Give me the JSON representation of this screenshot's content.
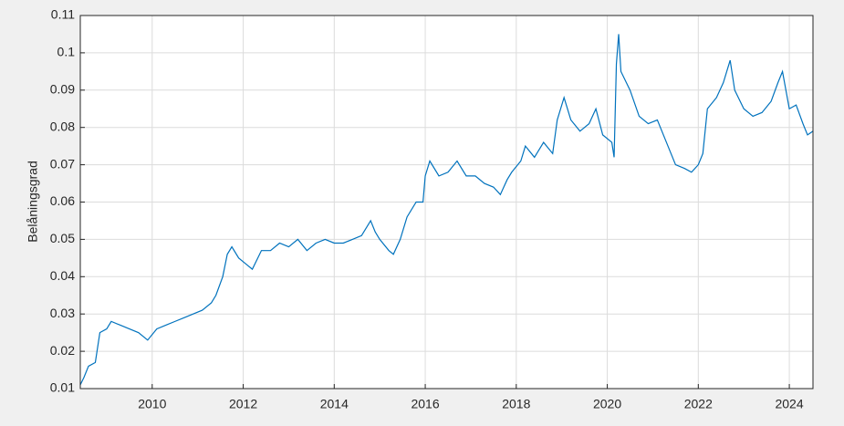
{
  "chart_data": {
    "type": "line",
    "y_label": "Belåningsgrad",
    "xlim": [
      2008.42,
      2024.52
    ],
    "xticks": [
      2010,
      2012,
      2014,
      2016,
      2018,
      2020,
      2022,
      2024
    ],
    "ylim": [
      0.01,
      0.11
    ],
    "yticks": [
      0.01,
      0.02,
      0.03,
      0.04,
      0.05,
      0.06,
      0.07,
      0.08,
      0.09,
      0.1,
      0.11
    ],
    "grid": true,
    "series": [
      {
        "color": "#0072bd",
        "x": [
          2008.42,
          2008.5,
          2008.6,
          2008.75,
          2008.85,
          2009.0,
          2009.1,
          2009.3,
          2009.5,
          2009.7,
          2009.9,
          2010.1,
          2010.3,
          2010.5,
          2010.7,
          2010.9,
          2011.1,
          2011.3,
          2011.4,
          2011.55,
          2011.65,
          2011.75,
          2011.9,
          2012.1,
          2012.2,
          2012.4,
          2012.6,
          2012.8,
          2013.0,
          2013.2,
          2013.4,
          2013.6,
          2013.8,
          2014.0,
          2014.2,
          2014.4,
          2014.6,
          2014.8,
          2014.9,
          2015.0,
          2015.2,
          2015.3,
          2015.45,
          2015.6,
          2015.8,
          2015.95,
          2016.0,
          2016.1,
          2016.3,
          2016.5,
          2016.7,
          2016.9,
          2017.1,
          2017.3,
          2017.5,
          2017.65,
          2017.8,
          2017.9,
          2018.1,
          2018.2,
          2018.4,
          2018.6,
          2018.8,
          2018.9,
          2019.05,
          2019.2,
          2019.4,
          2019.6,
          2019.75,
          2019.9,
          2020.1,
          2020.15,
          2020.2,
          2020.25,
          2020.3,
          2020.5,
          2020.7,
          2020.9,
          2021.1,
          2021.3,
          2021.5,
          2021.7,
          2021.85,
          2022.0,
          2022.1,
          2022.2,
          2022.4,
          2022.55,
          2022.7,
          2022.8,
          2023.0,
          2023.2,
          2023.4,
          2023.6,
          2023.75,
          2023.85,
          2024.0,
          2024.15,
          2024.3,
          2024.4,
          2024.52
        ],
        "values": [
          0.011,
          0.013,
          0.016,
          0.017,
          0.025,
          0.026,
          0.028,
          0.027,
          0.026,
          0.025,
          0.023,
          0.026,
          0.027,
          0.028,
          0.029,
          0.03,
          0.031,
          0.033,
          0.035,
          0.04,
          0.046,
          0.048,
          0.045,
          0.043,
          0.042,
          0.047,
          0.047,
          0.049,
          0.048,
          0.05,
          0.047,
          0.049,
          0.05,
          0.049,
          0.049,
          0.05,
          0.051,
          0.055,
          0.052,
          0.05,
          0.047,
          0.046,
          0.05,
          0.056,
          0.06,
          0.06,
          0.067,
          0.071,
          0.067,
          0.068,
          0.071,
          0.067,
          0.067,
          0.065,
          0.064,
          0.062,
          0.066,
          0.068,
          0.071,
          0.075,
          0.072,
          0.076,
          0.073,
          0.082,
          0.088,
          0.082,
          0.079,
          0.081,
          0.085,
          0.078,
          0.076,
          0.072,
          0.097,
          0.105,
          0.095,
          0.09,
          0.083,
          0.081,
          0.082,
          0.076,
          0.07,
          0.069,
          0.068,
          0.07,
          0.073,
          0.085,
          0.088,
          0.092,
          0.098,
          0.09,
          0.085,
          0.083,
          0.084,
          0.087,
          0.092,
          0.095,
          0.085,
          0.086,
          0.081,
          0.078,
          0.079
        ]
      }
    ]
  }
}
